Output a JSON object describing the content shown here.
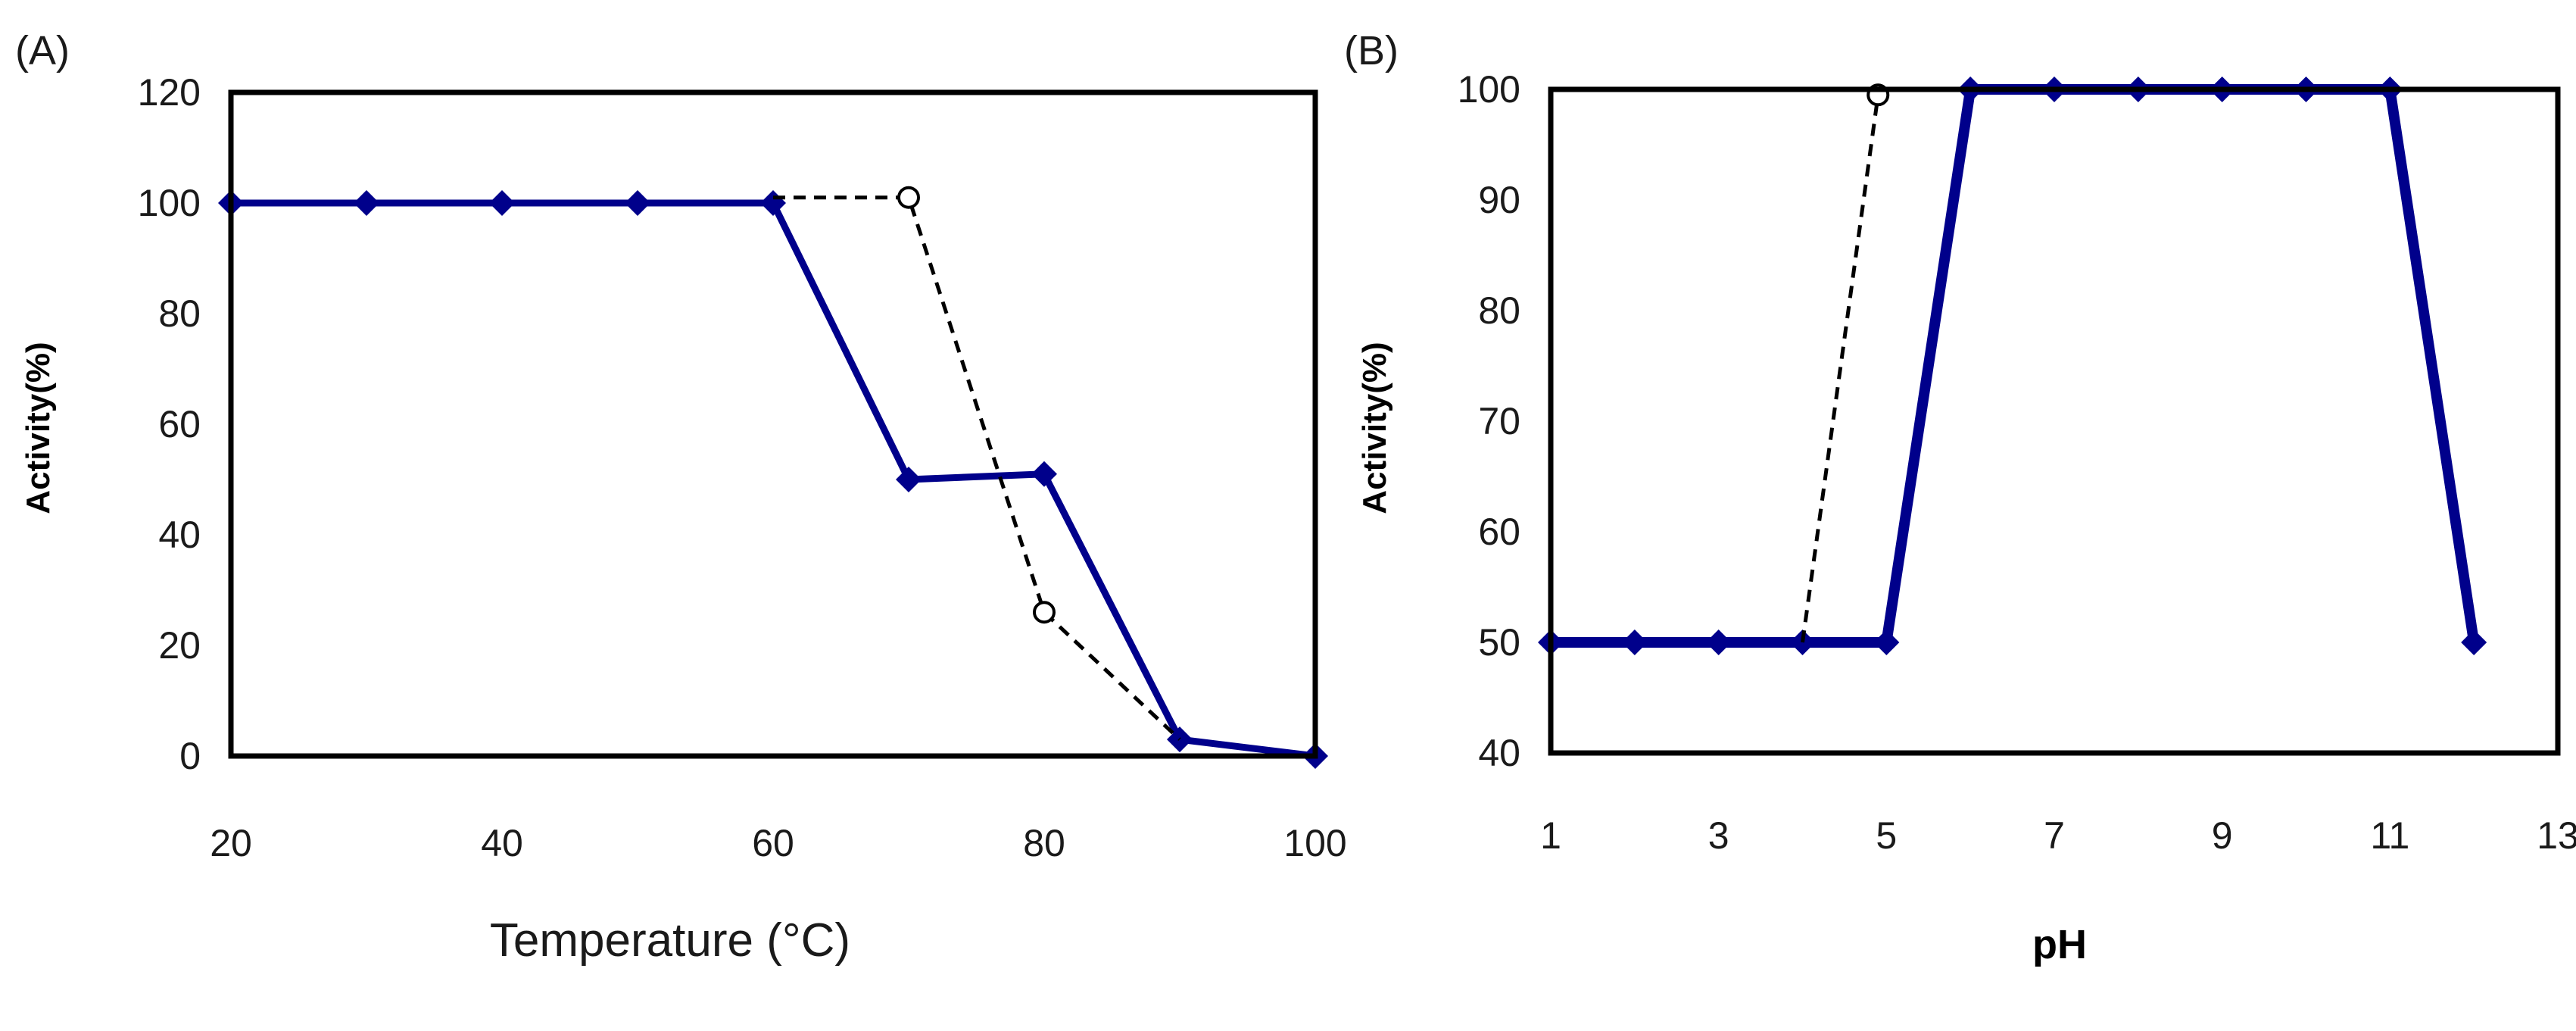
{
  "colors": {
    "solid": "#00008B",
    "dashed": "#000000"
  },
  "chart_data": [
    {
      "panel": "(A)",
      "type": "line",
      "xlabel": "Temperature (°C)",
      "ylabel": "Activity(%)",
      "xlim": [
        20,
        100
      ],
      "ylim": [
        0,
        120
      ],
      "xticks": [
        "20",
        "40",
        "60",
        "80",
        "100"
      ],
      "yticks": [
        "0",
        "20",
        "40",
        "60",
        "80",
        "100",
        "120"
      ],
      "grid": false,
      "series": [
        {
          "name": "solid",
          "style": "solid-diamond",
          "x": [
            20,
            30,
            40,
            50,
            60,
            70,
            80,
            90,
            100
          ],
          "y": [
            100,
            100,
            100,
            100,
            100,
            50,
            51,
            3,
            0
          ]
        },
        {
          "name": "dashed",
          "style": "dashed-circle",
          "x": [
            60,
            70,
            80,
            90
          ],
          "y": [
            101,
            101,
            26,
            3
          ],
          "markers": [
            false,
            true,
            true,
            false
          ]
        }
      ]
    },
    {
      "panel": "(B)",
      "type": "line",
      "xlabel": "pH",
      "ylabel": "Activity(%)",
      "xlim": [
        1,
        13
      ],
      "ylim": [
        40,
        100
      ],
      "xticks": [
        "1",
        "3",
        "5",
        "7",
        "9",
        "11",
        "13"
      ],
      "yticks": [
        "40",
        "50",
        "60",
        "70",
        "80",
        "90",
        "100"
      ],
      "grid": false,
      "series": [
        {
          "name": "solid",
          "style": "solid-diamond",
          "x": [
            1,
            2,
            3,
            4,
            5,
            6,
            7,
            8,
            9,
            10,
            11,
            12
          ],
          "y": [
            50,
            50,
            50,
            50,
            50,
            100,
            100,
            100,
            100,
            100,
            100,
            50
          ]
        },
        {
          "name": "dashed",
          "style": "dashed-circle",
          "x": [
            4,
            4.9
          ],
          "y": [
            50,
            99.5
          ],
          "markers": [
            false,
            true
          ]
        }
      ]
    }
  ]
}
